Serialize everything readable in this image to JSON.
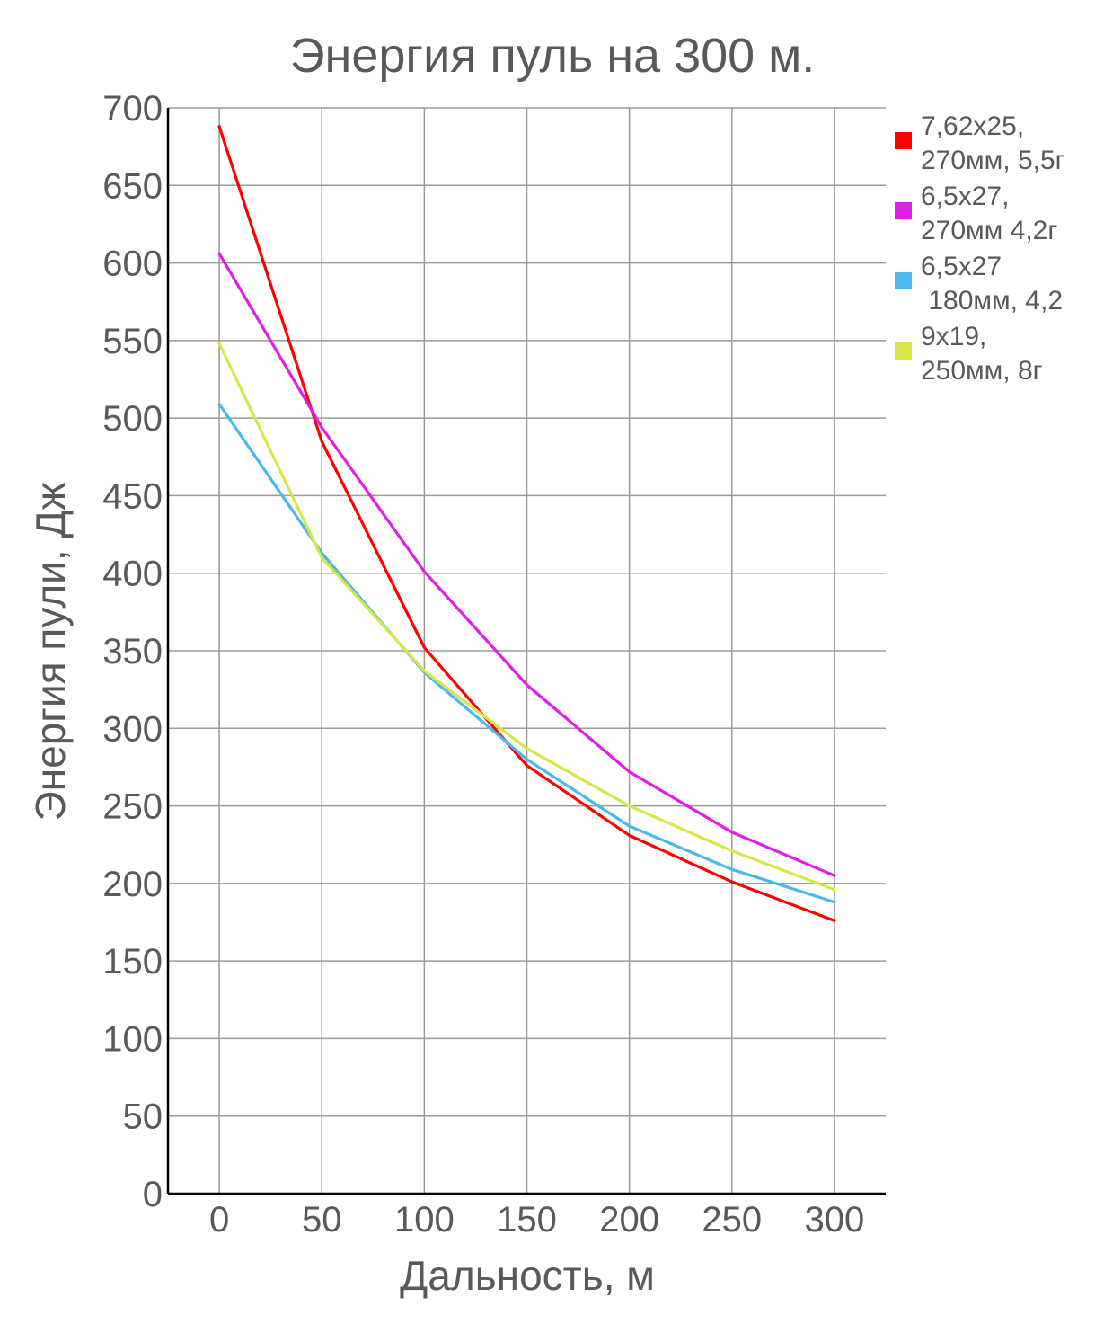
{
  "chart_data": {
    "type": "line",
    "title": "Энергия пуль на 300 м.",
    "xlabel": "Дальность, м",
    "ylabel": "Энергия пули, Дж",
    "x": [
      0,
      50,
      100,
      150,
      200,
      250,
      300
    ],
    "x_ticks": [
      "0",
      "50",
      "100",
      "150",
      "200",
      "250",
      "300"
    ],
    "y_ticks": [
      "0",
      "50",
      "100",
      "150",
      "200",
      "250",
      "300",
      "350",
      "400",
      "450",
      "500",
      "550",
      "600",
      "650",
      "700"
    ],
    "xlim": [
      -25,
      325
    ],
    "ylim": [
      0,
      700
    ],
    "grid": true,
    "legend_position": "right",
    "series": [
      {
        "name_lines": [
          "7,62x25,",
          "270мм, 5,5г"
        ],
        "color": "#ff0000",
        "values": [
          688,
          485,
          352,
          276,
          231,
          201,
          176
        ]
      },
      {
        "name_lines": [
          "6,5x27,",
          "270мм 4,2г"
        ],
        "color": "#e11ee6",
        "values": [
          606,
          494,
          401,
          328,
          272,
          233,
          205
        ]
      },
      {
        "name_lines": [
          "6,5x27",
          " 180мм, 4,2"
        ],
        "color": "#4cb8e8",
        "values": [
          509,
          413,
          336,
          280,
          237,
          209,
          188
        ]
      },
      {
        "name_lines": [
          "9x19,",
          "250мм, 8г"
        ],
        "color": "#d9e64a",
        "values": [
          548,
          410,
          337,
          287,
          250,
          221,
          196
        ]
      }
    ]
  }
}
